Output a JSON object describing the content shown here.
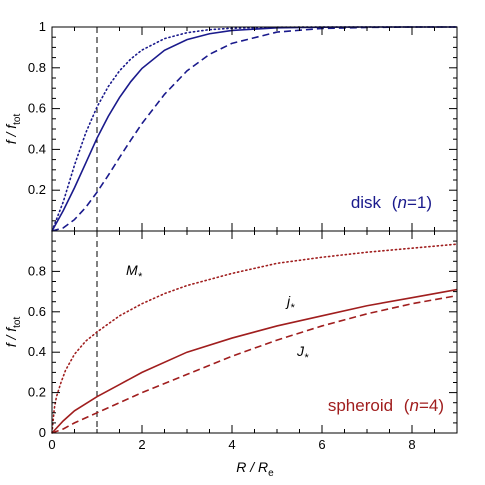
{
  "chart_data": [
    {
      "type": "line",
      "panel": "top",
      "label": "disk (n=1)",
      "label_parts": {
        "name": "disk",
        "open": "(",
        "var": "n",
        "eq": "=1",
        "close": ")"
      },
      "color": "#1a1a8c",
      "xlim": [
        0,
        9
      ],
      "ylim": [
        0,
        1
      ],
      "xticks": [
        0,
        2,
        4,
        6,
        8
      ],
      "yticks": [
        0.2,
        0.4,
        0.6,
        0.8,
        1
      ],
      "ytick_labels": [
        "0.2",
        "0.4",
        "0.6",
        "0.8",
        "1"
      ],
      "ylabel": {
        "main": "f / f",
        "sub": "tot"
      },
      "reference_line_x": 1,
      "series": [
        {
          "id": "mass",
          "style": "dotted",
          "x": [
            0,
            0.25,
            0.5,
            0.75,
            1,
            1.25,
            1.5,
            1.75,
            2,
            2.5,
            3,
            3.5,
            4,
            5,
            6,
            7,
            8,
            9
          ],
          "y": [
            0,
            0.143,
            0.323,
            0.481,
            0.608,
            0.708,
            0.785,
            0.843,
            0.887,
            0.943,
            0.972,
            0.987,
            0.994,
            0.999,
            1.0,
            1.0,
            1.0,
            1.0
          ]
        },
        {
          "id": "j",
          "style": "solid",
          "x": [
            0,
            0.25,
            0.5,
            0.75,
            1,
            1.25,
            1.5,
            1.75,
            2,
            2.5,
            3,
            3.5,
            4,
            5,
            6,
            7,
            8,
            9
          ],
          "y": [
            0,
            0.1,
            0.212,
            0.333,
            0.455,
            0.562,
            0.654,
            0.732,
            0.797,
            0.886,
            0.938,
            0.967,
            0.983,
            0.996,
            0.999,
            1.0,
            1.0,
            1.0
          ]
        },
        {
          "id": "J",
          "style": "dashed",
          "x": [
            0,
            0.25,
            0.5,
            0.75,
            1,
            1.25,
            1.5,
            1.75,
            2,
            2.5,
            3,
            3.5,
            4,
            5,
            6,
            7,
            8,
            9
          ],
          "y": [
            0,
            0.015,
            0.056,
            0.116,
            0.19,
            0.273,
            0.36,
            0.445,
            0.527,
            0.67,
            0.785,
            0.866,
            0.92,
            0.975,
            0.993,
            0.998,
            1.0,
            1.0
          ]
        }
      ]
    },
    {
      "type": "line",
      "panel": "bottom",
      "label": "spheroid (n=4)",
      "label_parts": {
        "name": "spheroid",
        "open": "(",
        "var": "n",
        "eq": "=4",
        "close": ")"
      },
      "color": "#a01e1e",
      "xlim": [
        0,
        9
      ],
      "ylim": [
        0,
        1
      ],
      "xticks": [
        0,
        2,
        4,
        6,
        8
      ],
      "xtick_labels": [
        "0",
        "2",
        "4",
        "6",
        "8"
      ],
      "yticks": [
        0,
        0.2,
        0.4,
        0.6,
        0.8
      ],
      "ytick_labels": [
        "0",
        "0.2",
        "0.4",
        "0.6",
        "0.8"
      ],
      "ylabel": {
        "main": "f / f",
        "sub": "tot"
      },
      "xlabel": {
        "main": "R / R",
        "sub": "e"
      },
      "reference_line_x": 1,
      "annotations": [
        {
          "main": "M",
          "sub": "*",
          "near_series": "mass"
        },
        {
          "main": "j",
          "sub": "*",
          "near_series": "j"
        },
        {
          "main": "J",
          "sub": "*",
          "near_series": "J"
        }
      ],
      "series": [
        {
          "id": "mass",
          "style": "dotted",
          "x": [
            0,
            0.05,
            0.1,
            0.2,
            0.3,
            0.5,
            0.75,
            1,
            1.5,
            2,
            2.5,
            3,
            4,
            5,
            6,
            7,
            8,
            9
          ],
          "y": [
            0,
            0.12,
            0.18,
            0.25,
            0.31,
            0.39,
            0.455,
            0.5,
            0.58,
            0.64,
            0.69,
            0.73,
            0.79,
            0.84,
            0.87,
            0.895,
            0.915,
            0.935
          ]
        },
        {
          "id": "j",
          "style": "solid",
          "x": [
            0,
            0.25,
            0.5,
            1,
            1.5,
            2,
            3,
            4,
            5,
            6,
            7,
            8,
            9
          ],
          "y": [
            0,
            0.06,
            0.11,
            0.18,
            0.24,
            0.3,
            0.4,
            0.47,
            0.53,
            0.58,
            0.63,
            0.67,
            0.71
          ]
        },
        {
          "id": "J",
          "style": "dashed",
          "x": [
            0,
            0.25,
            0.5,
            1,
            1.5,
            2,
            3,
            4,
            5,
            6,
            7,
            8,
            9
          ],
          "y": [
            0,
            0.02,
            0.05,
            0.1,
            0.15,
            0.2,
            0.29,
            0.38,
            0.46,
            0.53,
            0.59,
            0.64,
            0.68
          ]
        }
      ]
    }
  ]
}
